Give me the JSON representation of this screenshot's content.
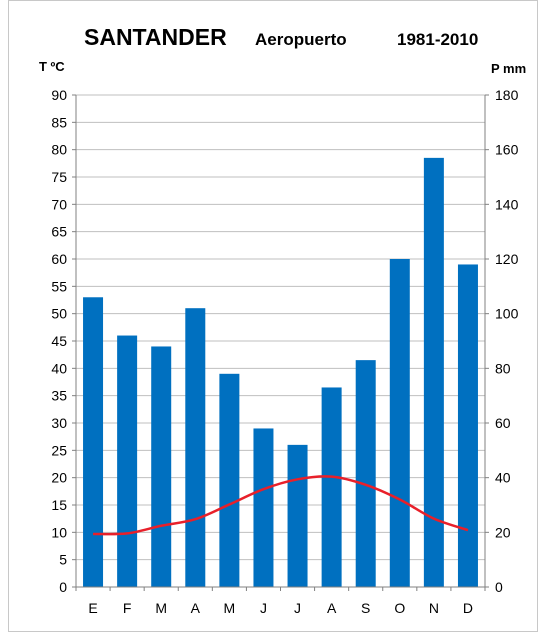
{
  "chart_data": {
    "type": "bar+line",
    "title": "SANTANDER",
    "subtitle_station": "Aeropuerto",
    "subtitle_period": "1981-2010",
    "left_axis_label": "T ºC",
    "right_axis_label": "P mm",
    "categories": [
      "E",
      "F",
      "M",
      "A",
      "M",
      "J",
      "J",
      "A",
      "S",
      "O",
      "N",
      "D"
    ],
    "left_ylim": [
      0,
      90
    ],
    "left_ticks": [
      0,
      5,
      10,
      15,
      20,
      25,
      30,
      35,
      40,
      45,
      50,
      55,
      60,
      65,
      70,
      75,
      80,
      85,
      90
    ],
    "right_ylim": [
      0,
      180
    ],
    "right_ticks": [
      0,
      20,
      40,
      60,
      80,
      100,
      120,
      140,
      160,
      180
    ],
    "grid": true,
    "series": [
      {
        "type": "bar",
        "axis": "right",
        "color": "#0070c0",
        "values": [
          106,
          92,
          88,
          102,
          78,
          58,
          52,
          73,
          83,
          120,
          157,
          118
        ]
      },
      {
        "type": "line",
        "axis": "left",
        "color": "#e8202a",
        "values": [
          9.7,
          9.8,
          11.2,
          12.4,
          15.1,
          17.9,
          19.7,
          20.2,
          18.7,
          16.0,
          12.5,
          10.4
        ]
      }
    ]
  }
}
